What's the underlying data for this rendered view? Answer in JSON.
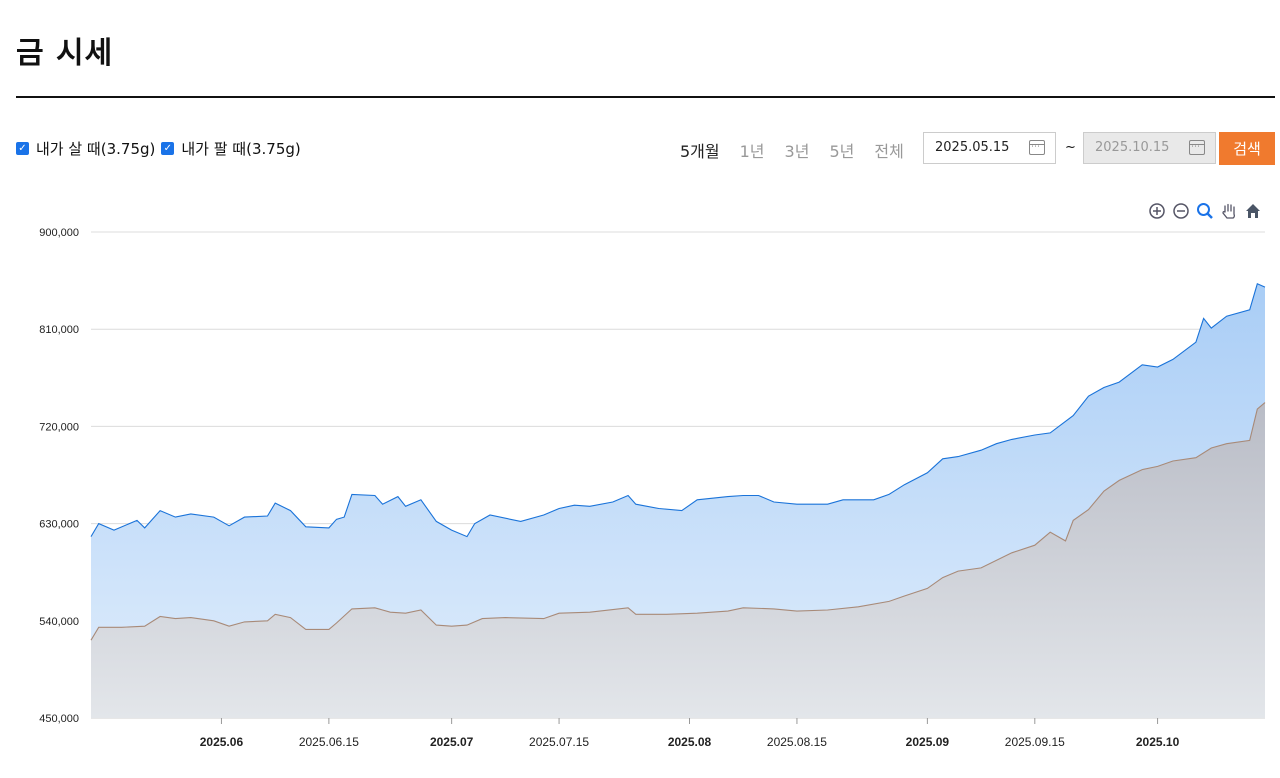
{
  "page": {
    "title": "금 시세"
  },
  "filters": {
    "buy_label": "내가 살 때(3.75g)",
    "sell_label": "내가 팔 때(3.75g)",
    "periods": [
      "5개월",
      "1년",
      "3년",
      "5년",
      "전체"
    ],
    "active_period": "5개월",
    "start_date": "2025.05.15",
    "end_date": "2025.10.15",
    "separator": "~",
    "search_label": "검색"
  },
  "toolbar": {
    "icons": [
      "zoom-in-icon",
      "zoom-out-icon",
      "magnifier-icon",
      "pan-hand-icon",
      "home-icon"
    ]
  },
  "colors": {
    "buy": "#1a73d9",
    "buy_fill": "#b9d6f8",
    "sell": "#a88a78",
    "sell_fill": "#c9cbd3",
    "accent": "#f07a2e"
  },
  "chart_data": {
    "type": "area",
    "x_range": [
      "2025.05.15",
      "2025.10.15"
    ],
    "ylim": [
      450000,
      900000
    ],
    "y_ticks": [
      "900,000",
      "810,000",
      "720,000",
      "630,000",
      "540,000",
      "450,000"
    ],
    "x_ticks": [
      {
        "label": "2025.06",
        "date": "2025-06-01",
        "bold": true
      },
      {
        "label": "2025.06.15",
        "date": "2025-06-15",
        "bold": false
      },
      {
        "label": "2025.07",
        "date": "2025-07-01",
        "bold": true
      },
      {
        "label": "2025.07.15",
        "date": "2025-07-15",
        "bold": false
      },
      {
        "label": "2025.08",
        "date": "2025-08-01",
        "bold": true
      },
      {
        "label": "2025.08.15",
        "date": "2025-08-15",
        "bold": false
      },
      {
        "label": "2025.09",
        "date": "2025-09-01",
        "bold": true
      },
      {
        "label": "2025.09.15",
        "date": "2025-09-15",
        "bold": false
      },
      {
        "label": "2025.10",
        "date": "2025-10-01",
        "bold": true
      }
    ],
    "series": [
      {
        "key": "buy",
        "points": [
          [
            "2025-05-15",
            618000
          ],
          [
            "2025-05-16",
            630000
          ],
          [
            "2025-05-18",
            624000
          ],
          [
            "2025-05-21",
            633000
          ],
          [
            "2025-05-22",
            626000
          ],
          [
            "2025-05-24",
            642000
          ],
          [
            "2025-05-26",
            636000
          ],
          [
            "2025-05-28",
            639000
          ],
          [
            "2025-05-31",
            636000
          ],
          [
            "2025-06-02",
            628000
          ],
          [
            "2025-06-04",
            636000
          ],
          [
            "2025-06-07",
            637000
          ],
          [
            "2025-06-08",
            649000
          ],
          [
            "2025-06-10",
            642000
          ],
          [
            "2025-06-12",
            627000
          ],
          [
            "2025-06-15",
            626000
          ],
          [
            "2025-06-16",
            634000
          ],
          [
            "2025-06-17",
            636000
          ],
          [
            "2025-06-18",
            657000
          ],
          [
            "2025-06-21",
            656000
          ],
          [
            "2025-06-22",
            648000
          ],
          [
            "2025-06-24",
            655000
          ],
          [
            "2025-06-25",
            646000
          ],
          [
            "2025-06-27",
            652000
          ],
          [
            "2025-06-29",
            632000
          ],
          [
            "2025-07-01",
            624000
          ],
          [
            "2025-07-03",
            618000
          ],
          [
            "2025-07-04",
            630000
          ],
          [
            "2025-07-06",
            638000
          ],
          [
            "2025-07-10",
            632000
          ],
          [
            "2025-07-13",
            638000
          ],
          [
            "2025-07-15",
            644000
          ],
          [
            "2025-07-17",
            647000
          ],
          [
            "2025-07-19",
            646000
          ],
          [
            "2025-07-22",
            650000
          ],
          [
            "2025-07-24",
            656000
          ],
          [
            "2025-07-25",
            648000
          ],
          [
            "2025-07-28",
            644000
          ],
          [
            "2025-07-31",
            642000
          ],
          [
            "2025-08-02",
            652000
          ],
          [
            "2025-08-06",
            655000
          ],
          [
            "2025-08-08",
            656000
          ],
          [
            "2025-08-10",
            656000
          ],
          [
            "2025-08-12",
            650000
          ],
          [
            "2025-08-15",
            648000
          ],
          [
            "2025-08-19",
            648000
          ],
          [
            "2025-08-21",
            652000
          ],
          [
            "2025-08-25",
            652000
          ],
          [
            "2025-08-27",
            657000
          ],
          [
            "2025-08-29",
            666000
          ],
          [
            "2025-09-01",
            677000
          ],
          [
            "2025-09-03",
            690000
          ],
          [
            "2025-09-05",
            692000
          ],
          [
            "2025-09-08",
            698000
          ],
          [
            "2025-09-10",
            704000
          ],
          [
            "2025-09-12",
            708000
          ],
          [
            "2025-09-15",
            712000
          ],
          [
            "2025-09-17",
            714000
          ],
          [
            "2025-09-20",
            730000
          ],
          [
            "2025-09-22",
            748000
          ],
          [
            "2025-09-24",
            756000
          ],
          [
            "2025-09-26",
            761000
          ],
          [
            "2025-09-29",
            777000
          ],
          [
            "2025-10-01",
            775000
          ],
          [
            "2025-10-03",
            782000
          ],
          [
            "2025-10-06",
            798000
          ],
          [
            "2025-10-07",
            820000
          ],
          [
            "2025-10-08",
            811000
          ],
          [
            "2025-10-10",
            822000
          ],
          [
            "2025-10-13",
            828000
          ],
          [
            "2025-10-14",
            852000
          ],
          [
            "2025-10-15",
            849000
          ]
        ]
      },
      {
        "key": "sell",
        "points": [
          [
            "2025-05-15",
            522000
          ],
          [
            "2025-05-16",
            534000
          ],
          [
            "2025-05-19",
            534000
          ],
          [
            "2025-05-22",
            535000
          ],
          [
            "2025-05-24",
            544000
          ],
          [
            "2025-05-26",
            542000
          ],
          [
            "2025-05-28",
            543000
          ],
          [
            "2025-05-31",
            540000
          ],
          [
            "2025-06-02",
            535000
          ],
          [
            "2025-06-04",
            539000
          ],
          [
            "2025-06-07",
            540000
          ],
          [
            "2025-06-08",
            546000
          ],
          [
            "2025-06-10",
            543000
          ],
          [
            "2025-06-12",
            532000
          ],
          [
            "2025-06-15",
            532000
          ],
          [
            "2025-06-16",
            538000
          ],
          [
            "2025-06-18",
            551000
          ],
          [
            "2025-06-21",
            552000
          ],
          [
            "2025-06-23",
            548000
          ],
          [
            "2025-06-25",
            547000
          ],
          [
            "2025-06-27",
            550000
          ],
          [
            "2025-06-29",
            536000
          ],
          [
            "2025-07-01",
            535000
          ],
          [
            "2025-07-03",
            536000
          ],
          [
            "2025-07-05",
            542000
          ],
          [
            "2025-07-08",
            543000
          ],
          [
            "2025-07-13",
            542000
          ],
          [
            "2025-07-15",
            547000
          ],
          [
            "2025-07-19",
            548000
          ],
          [
            "2025-07-24",
            552000
          ],
          [
            "2025-07-25",
            546000
          ],
          [
            "2025-07-29",
            546000
          ],
          [
            "2025-08-02",
            547000
          ],
          [
            "2025-08-06",
            549000
          ],
          [
            "2025-08-08",
            552000
          ],
          [
            "2025-08-12",
            551000
          ],
          [
            "2025-08-15",
            549000
          ],
          [
            "2025-08-19",
            550000
          ],
          [
            "2025-08-23",
            553000
          ],
          [
            "2025-08-27",
            558000
          ],
          [
            "2025-08-29",
            563000
          ],
          [
            "2025-09-01",
            570000
          ],
          [
            "2025-09-03",
            580000
          ],
          [
            "2025-09-05",
            586000
          ],
          [
            "2025-09-08",
            589000
          ],
          [
            "2025-09-12",
            603000
          ],
          [
            "2025-09-15",
            610000
          ],
          [
            "2025-09-17",
            622000
          ],
          [
            "2025-09-19",
            614000
          ],
          [
            "2025-09-20",
            633000
          ],
          [
            "2025-09-22",
            643000
          ],
          [
            "2025-09-24",
            660000
          ],
          [
            "2025-09-26",
            670000
          ],
          [
            "2025-09-29",
            680000
          ],
          [
            "2025-10-01",
            683000
          ],
          [
            "2025-10-03",
            688000
          ],
          [
            "2025-10-06",
            691000
          ],
          [
            "2025-10-08",
            700000
          ],
          [
            "2025-10-10",
            704000
          ],
          [
            "2025-10-13",
            707000
          ],
          [
            "2025-10-14",
            736000
          ],
          [
            "2025-10-15",
            742000
          ]
        ]
      }
    ],
    "grid": true
  }
}
